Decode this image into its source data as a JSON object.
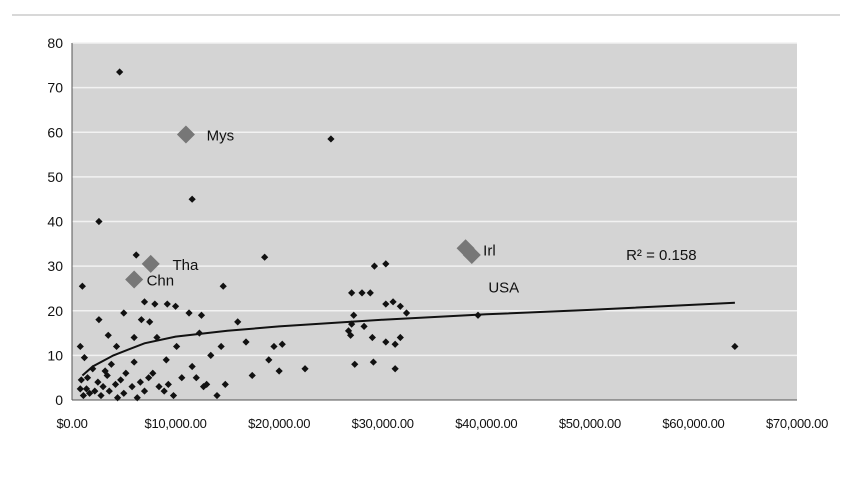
{
  "chart_data": {
    "type": "scatter",
    "title": "",
    "xlabel": "",
    "ylabel": "",
    "xlim": [
      0,
      70000
    ],
    "ylim": [
      0,
      80
    ],
    "grid": true,
    "x_ticks": [
      0,
      10000,
      20000,
      30000,
      40000,
      50000,
      60000,
      70000
    ],
    "x_tick_labels": [
      "$0.00",
      "$10,000.00",
      "$20,000.00",
      "$30,000.00",
      "$40,000.00",
      "$50,000.00",
      "$60,000.00",
      "$70,000.00"
    ],
    "y_ticks": [
      0,
      10,
      20,
      30,
      40,
      50,
      60,
      70,
      80
    ],
    "y_tick_labels": [
      "0",
      "10",
      "20",
      "30",
      "40",
      "50",
      "60",
      "70",
      "80"
    ],
    "colors": {
      "plot_background": "#d4d4d4",
      "gridline": "#f2f2f2",
      "point": "#111111",
      "highlight": "#777777",
      "trendline": "#111111",
      "text": "#111111"
    },
    "series": [
      {
        "points": [
          [
            4600,
            73.5
          ],
          [
            2600,
            40
          ],
          [
            11600,
            45
          ],
          [
            1000,
            25.5
          ],
          [
            6200,
            32.5
          ],
          [
            18600,
            32
          ],
          [
            25000,
            58.5
          ],
          [
            29200,
            30
          ],
          [
            30300,
            30.5
          ],
          [
            27000,
            24
          ],
          [
            28000,
            24
          ],
          [
            28800,
            24
          ],
          [
            31000,
            22
          ],
          [
            31700,
            21
          ],
          [
            30300,
            21.5
          ],
          [
            27200,
            19
          ],
          [
            27000,
            17
          ],
          [
            28200,
            16.5
          ],
          [
            26700,
            15.5
          ],
          [
            26900,
            14.5
          ],
          [
            29000,
            14
          ],
          [
            30300,
            13
          ],
          [
            31200,
            12.5
          ],
          [
            31700,
            14
          ],
          [
            32300,
            19.5
          ],
          [
            31200,
            7
          ],
          [
            27300,
            8
          ],
          [
            29100,
            8.5
          ],
          [
            39200,
            19
          ],
          [
            14600,
            25.5
          ],
          [
            8000,
            21.5
          ],
          [
            9200,
            21.5
          ],
          [
            10000,
            21
          ],
          [
            11300,
            19.5
          ],
          [
            12500,
            19
          ],
          [
            5000,
            19.5
          ],
          [
            6700,
            18
          ],
          [
            2600,
            18
          ],
          [
            7500,
            17.5
          ],
          [
            3500,
            14.5
          ],
          [
            6000,
            14
          ],
          [
            4300,
            12
          ],
          [
            8200,
            14
          ],
          [
            10100,
            12
          ],
          [
            12300,
            15
          ],
          [
            16000,
            17.5
          ],
          [
            16800,
            13
          ],
          [
            13400,
            10
          ],
          [
            14400,
            12
          ],
          [
            19500,
            12
          ],
          [
            20300,
            12.5
          ],
          [
            19000,
            9
          ],
          [
            17400,
            5.5
          ],
          [
            20000,
            6.5
          ],
          [
            22500,
            7
          ],
          [
            12000,
            5
          ],
          [
            12700,
            3
          ],
          [
            13000,
            3.5
          ],
          [
            14000,
            1
          ],
          [
            14800,
            3.5
          ],
          [
            11600,
            7.5
          ],
          [
            10600,
            5
          ],
          [
            9300,
            3.5
          ],
          [
            800,
            12
          ],
          [
            7000,
            2
          ],
          [
            1200,
            9.5
          ],
          [
            2000,
            7
          ],
          [
            3800,
            8
          ],
          [
            5200,
            6
          ],
          [
            6000,
            8.5
          ],
          [
            1500,
            5
          ],
          [
            2500,
            4
          ],
          [
            3000,
            3
          ],
          [
            1700,
            1.5
          ],
          [
            800,
            2.5
          ],
          [
            900,
            4.5
          ],
          [
            1100,
            1
          ],
          [
            2200,
            2
          ],
          [
            3400,
            5.5
          ],
          [
            4200,
            3.5
          ],
          [
            5800,
            3
          ],
          [
            6600,
            4
          ],
          [
            7400,
            5
          ],
          [
            8400,
            3
          ],
          [
            5000,
            1.5
          ],
          [
            7800,
            6
          ],
          [
            8900,
            2
          ],
          [
            1400,
            2.5
          ],
          [
            2800,
            1
          ],
          [
            3600,
            2
          ],
          [
            4400,
            0.5
          ],
          [
            6300,
            0.5
          ],
          [
            9800,
            1
          ],
          [
            64000,
            12
          ],
          [
            7000,
            22
          ],
          [
            9100,
            9
          ],
          [
            4700,
            4.5
          ],
          [
            3200,
            6.5
          ]
        ]
      },
      {
        "points": [
          [
            11000,
            59.5
          ],
          [
            7600,
            30.5
          ],
          [
            6000,
            27
          ],
          [
            38000,
            34
          ],
          [
            38600,
            32.5
          ]
        ]
      }
    ],
    "annotations": [
      {
        "text": "Mys",
        "x": 13000,
        "y": 59.3
      },
      {
        "text": "Tha",
        "x": 9700,
        "y": 30.2
      },
      {
        "text": "Chn",
        "x": 7200,
        "y": 26.8
      },
      {
        "text": "Irl",
        "x": 39700,
        "y": 33.5
      },
      {
        "text": "USA",
        "x": 40200,
        "y": 25.2
      },
      {
        "text": "R² = 0.158",
        "x": 53500,
        "y": 32.5
      }
    ],
    "trendline": {
      "type": "logarithmic",
      "points": [
        [
          1000,
          5.5
        ],
        [
          2000,
          7.5
        ],
        [
          4000,
          10
        ],
        [
          7000,
          12.7
        ],
        [
          10000,
          14.2
        ],
        [
          15000,
          15.5
        ],
        [
          20000,
          16.5
        ],
        [
          30000,
          18
        ],
        [
          40000,
          19.2
        ],
        [
          50000,
          20.2
        ],
        [
          64000,
          21.8
        ]
      ],
      "r_squared": "R² = 0.158"
    }
  }
}
